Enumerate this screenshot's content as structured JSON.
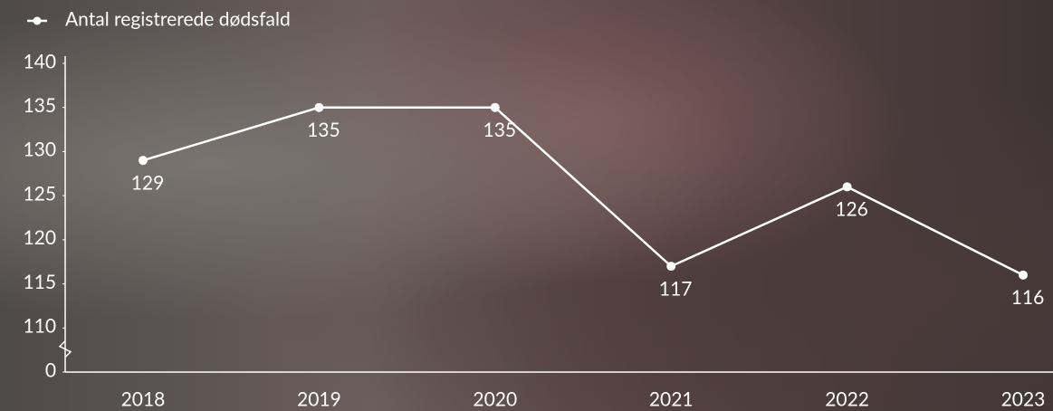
{
  "chart_data": {
    "type": "line",
    "categories": [
      "2018",
      "2019",
      "2020",
      "2021",
      "2022",
      "2023"
    ],
    "series": [
      {
        "name": "Antal registrerede dødsfald",
        "color": "#ffffff",
        "values": [
          129,
          135,
          135,
          117,
          126,
          116
        ]
      }
    ],
    "ylim": [
      0,
      140
    ],
    "yticks": [
      0,
      110,
      115,
      120,
      125,
      130,
      135,
      140
    ],
    "axis_break": true,
    "grid": false,
    "legend": "top-left"
  }
}
